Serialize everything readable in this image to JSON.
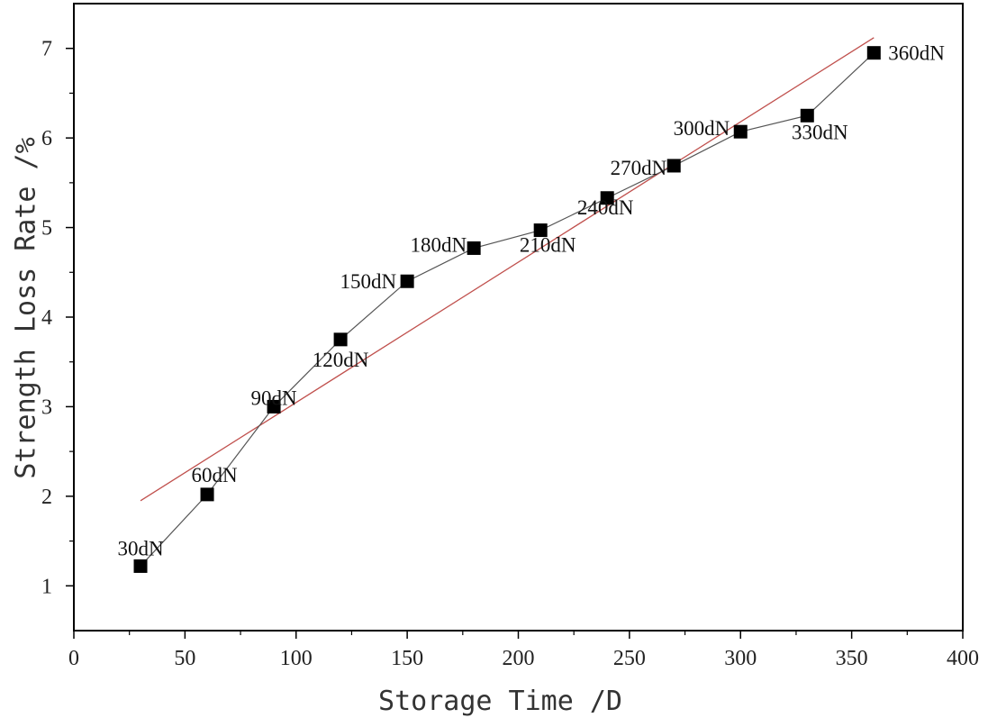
{
  "chart_data": {
    "type": "scatter",
    "title": "",
    "xlabel": "Storage Time /D",
    "ylabel": "Strength Loss Rate /%",
    "xlim": [
      0,
      400
    ],
    "ylim": [
      0.5,
      7.5
    ],
    "x_ticks": [
      0,
      50,
      100,
      150,
      200,
      250,
      300,
      350,
      400
    ],
    "y_ticks": [
      1,
      2,
      3,
      4,
      5,
      6,
      7
    ],
    "grid": false,
    "series": [
      {
        "marker": "square",
        "line": "connected",
        "color": "#000000",
        "x": [
          30,
          60,
          90,
          120,
          150,
          180,
          210,
          240,
          270,
          300,
          330,
          360
        ],
        "y": [
          1.22,
          2.02,
          3.0,
          3.75,
          4.4,
          4.77,
          4.97,
          5.33,
          5.69,
          6.07,
          6.25,
          6.95
        ],
        "point_labels": [
          "30dN",
          "60dN",
          "90dN",
          "120dN",
          "150dN",
          "180dN",
          "210dN",
          "240dN",
          "270dN",
          "300dN",
          "330dN",
          "360dN"
        ]
      }
    ],
    "trendline": {
      "type": "linear",
      "color": "#c0504d",
      "x": [
        30,
        360
      ],
      "y": [
        1.95,
        7.12
      ]
    }
  }
}
